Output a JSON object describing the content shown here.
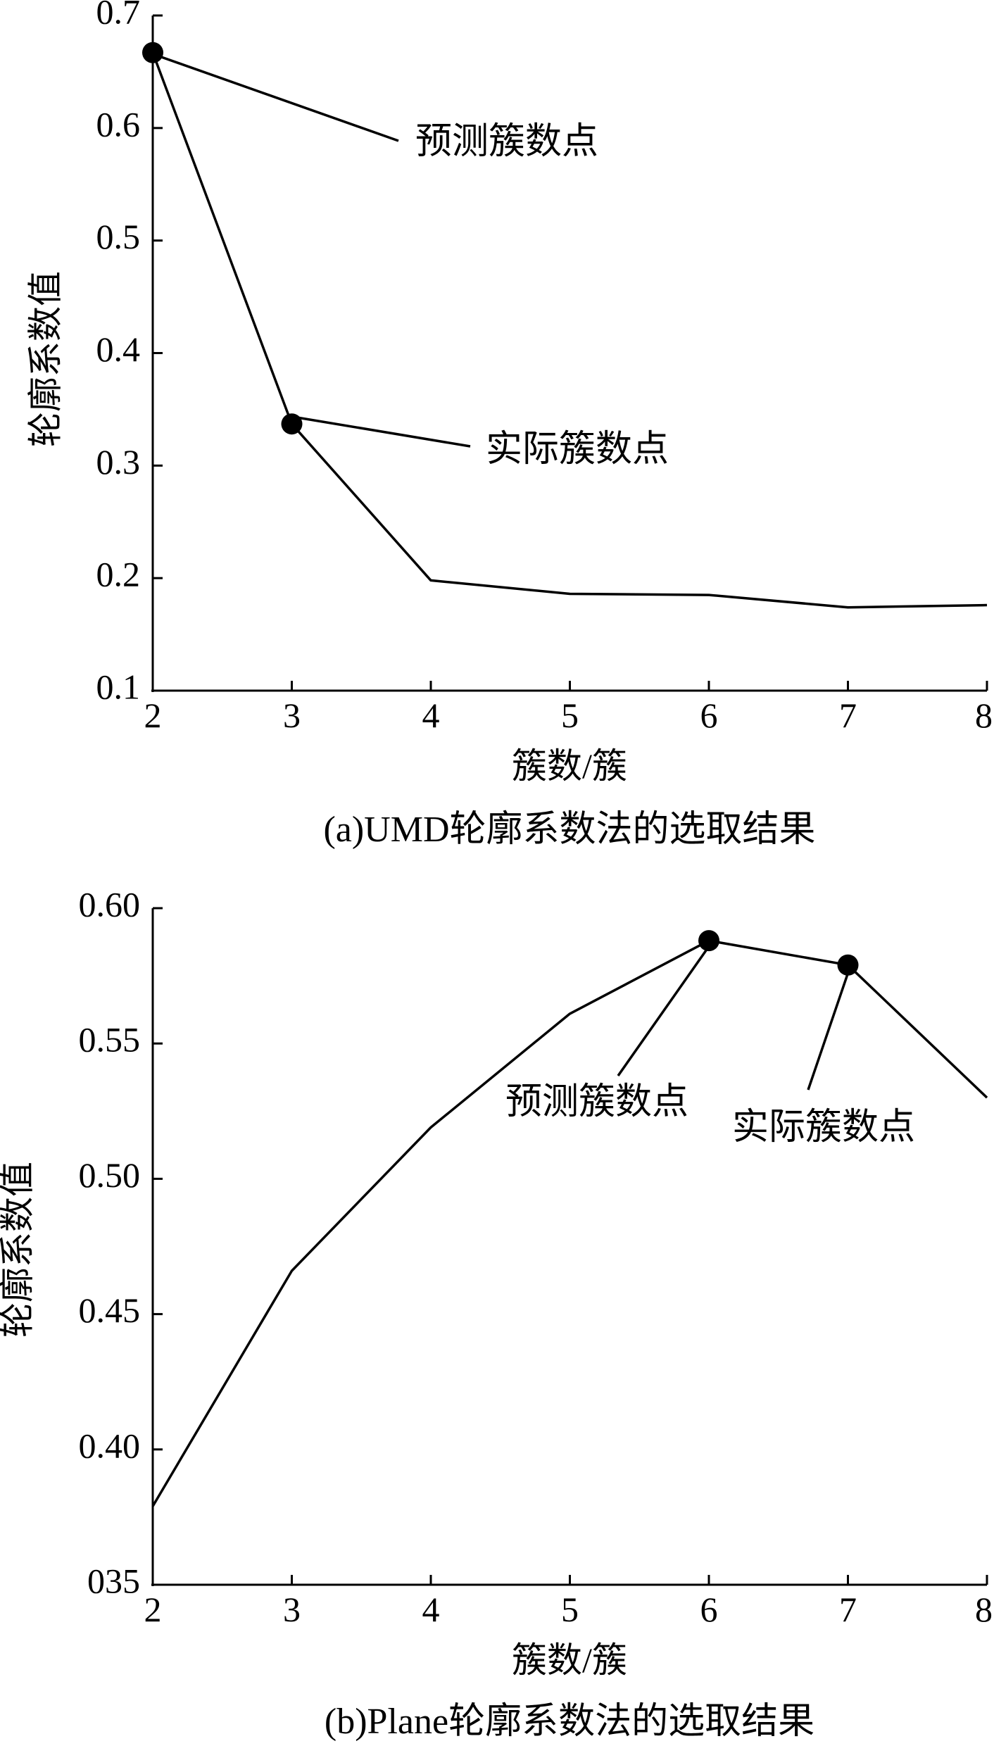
{
  "chart_data": [
    {
      "type": "line",
      "caption": "(a)UMD轮廓系数法的选取结果",
      "xlabel": "簇数/簇",
      "ylabel": "轮廓系数值",
      "xlim": [
        2,
        8
      ],
      "ylim": [
        0.1,
        0.7
      ],
      "x_ticks": [
        "2",
        "3",
        "4",
        "5",
        "6",
        "7",
        "8"
      ],
      "y_ticks": [
        "0.1",
        "0.2",
        "0.3",
        "0.4",
        "0.5",
        "0.6",
        "0.7"
      ],
      "y_tick_values": [
        0.1,
        0.2,
        0.3,
        0.4,
        0.5,
        0.6,
        0.7
      ],
      "x": [
        2,
        3,
        4,
        5,
        6,
        7,
        8
      ],
      "series": [
        {
          "values": [
            0.667,
            0.337,
            0.198,
            0.186,
            0.185,
            0.174,
            0.176
          ]
        }
      ],
      "markers": [
        {
          "x": 2,
          "y": 0.667,
          "label": "预测簇数点"
        },
        {
          "x": 3,
          "y": 0.337,
          "label": "实际簇数点"
        }
      ],
      "grid": false,
      "color": "#000000"
    },
    {
      "type": "line",
      "caption": "(b)Plane轮廓系数法的选取结果",
      "xlabel": "簇数/簇",
      "ylabel": "轮廓系数值",
      "xlim": [
        2,
        8
      ],
      "ylim": [
        0.35,
        0.6
      ],
      "x_ticks": [
        "2",
        "3",
        "4",
        "5",
        "6",
        "7",
        "8"
      ],
      "y_ticks": [
        "035",
        "0.40",
        "0.45",
        "0.50",
        "0.55",
        "0.60"
      ],
      "y_tick_values": [
        0.35,
        0.4,
        0.45,
        0.5,
        0.55,
        0.6
      ],
      "x": [
        2,
        3,
        4,
        5,
        6,
        7,
        8
      ],
      "series": [
        {
          "values": [
            0.379,
            0.466,
            0.519,
            0.561,
            0.588,
            0.579,
            0.53
          ]
        }
      ],
      "markers": [
        {
          "x": 6,
          "y": 0.588,
          "label": "预测簇数点"
        },
        {
          "x": 7,
          "y": 0.579,
          "label": "实际簇数点"
        }
      ],
      "grid": false,
      "color": "#000000"
    }
  ]
}
